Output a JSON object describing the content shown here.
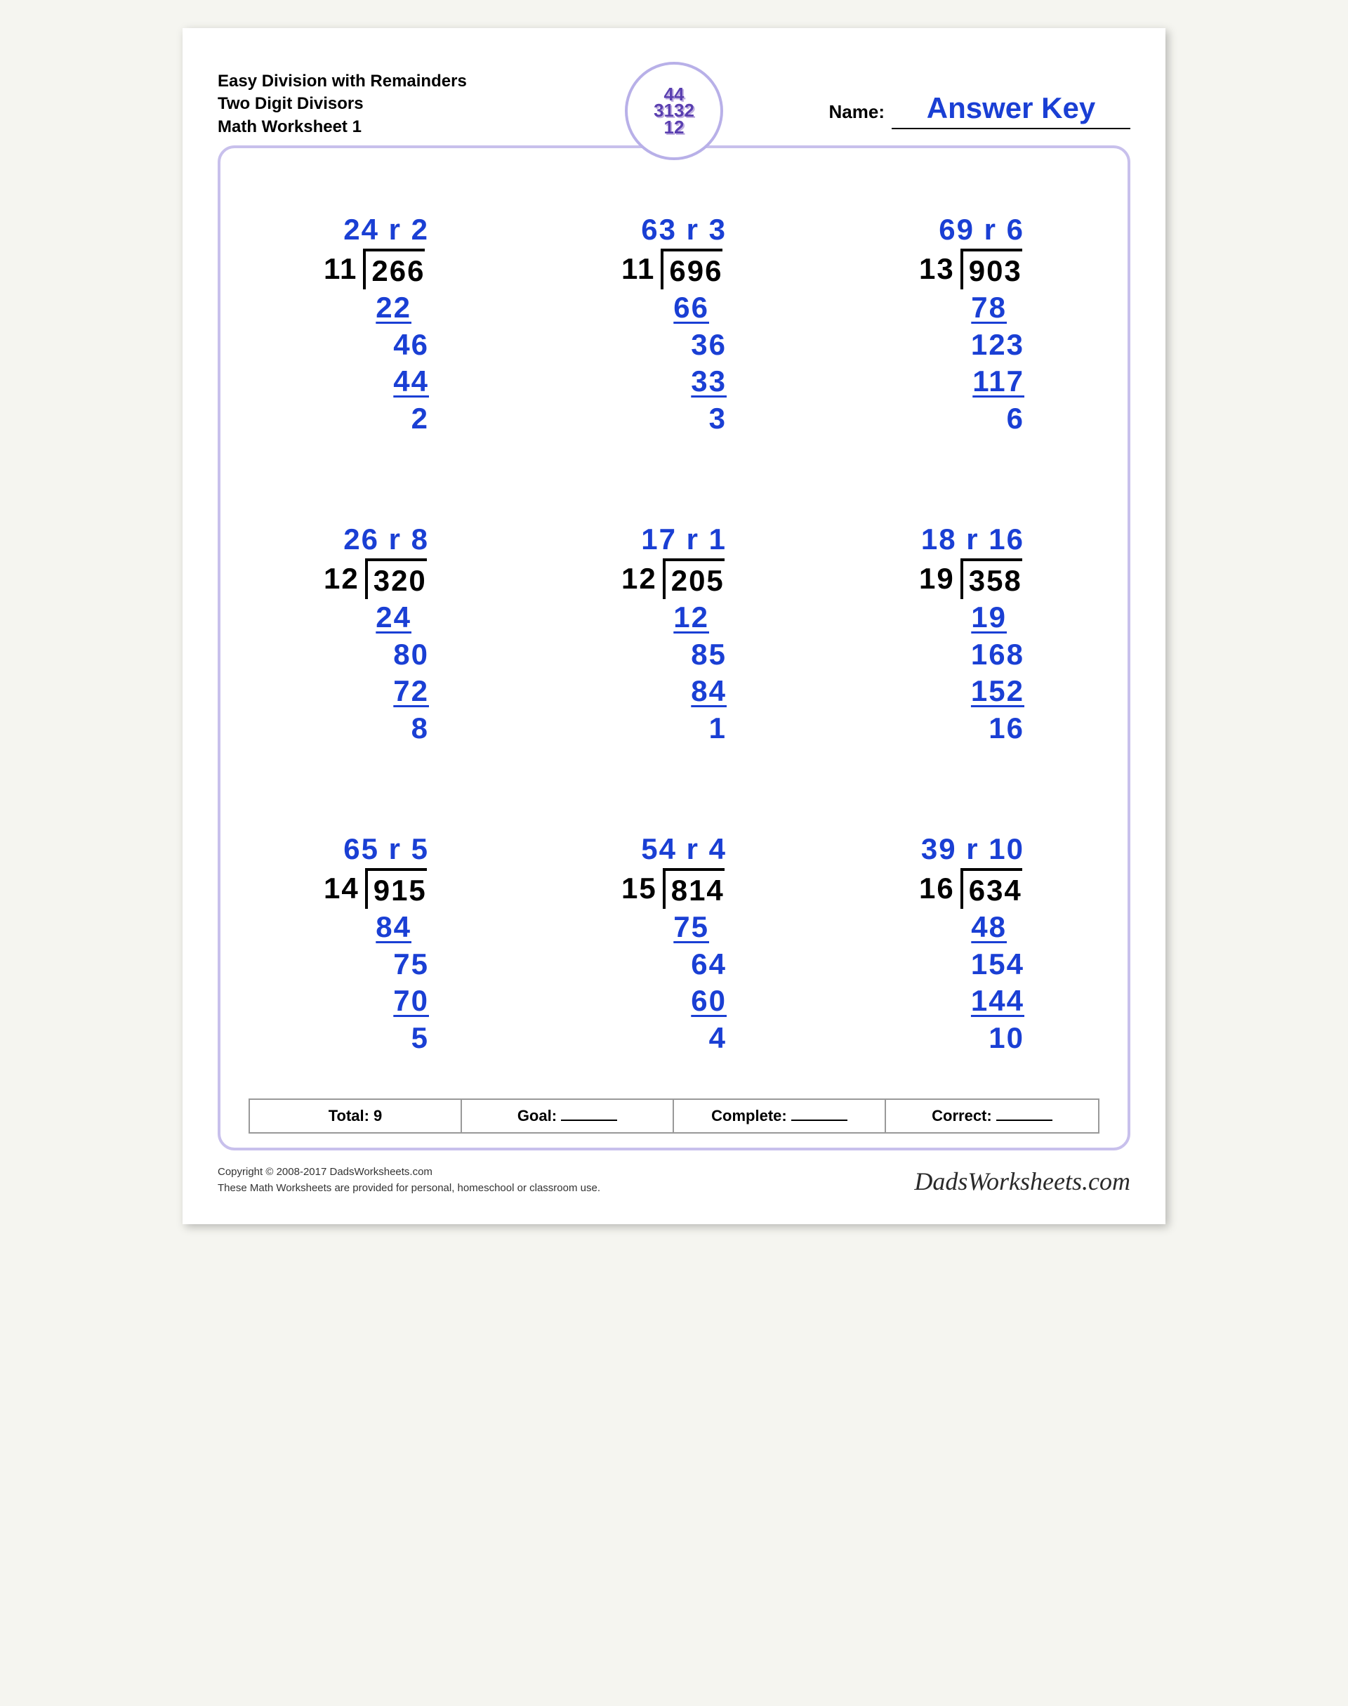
{
  "header": {
    "line1": "Easy Division with Remainders",
    "line2": "Two Digit Divisors",
    "line3": "Math Worksheet 1",
    "nameLabel": "Name:",
    "answerKey": "Answer Key",
    "logoText": "44\n3132\n12\n12"
  },
  "colors": {
    "answer": "#1a3fd4",
    "text": "#000000",
    "frame": "#c8c0ec"
  },
  "problems": [
    {
      "divisor": "11",
      "dividend": "266",
      "quotient": "24",
      "remainder": "2",
      "work": [
        {
          "t": "22",
          "u": true,
          "pad": 1
        },
        {
          "t": "46",
          "pad": 0
        },
        {
          "t": "44",
          "u": true,
          "pad": 0
        },
        {
          "t": "2",
          "pad": 0
        }
      ]
    },
    {
      "divisor": "11",
      "dividend": "696",
      "quotient": "63",
      "remainder": "3",
      "work": [
        {
          "t": "66",
          "u": true,
          "pad": 1
        },
        {
          "t": "36",
          "pad": 0
        },
        {
          "t": "33",
          "u": true,
          "pad": 0
        },
        {
          "t": "3",
          "pad": 0
        }
      ]
    },
    {
      "divisor": "13",
      "dividend": "903",
      "quotient": "69",
      "remainder": "6",
      "work": [
        {
          "t": "78",
          "u": true,
          "pad": 1
        },
        {
          "t": "123",
          "pad": 0
        },
        {
          "t": "117",
          "u": true,
          "pad": 0
        },
        {
          "t": "6",
          "pad": 0
        }
      ]
    },
    {
      "divisor": "12",
      "dividend": "320",
      "quotient": "26",
      "remainder": "8",
      "work": [
        {
          "t": "24",
          "u": true,
          "pad": 1
        },
        {
          "t": "80",
          "pad": 0
        },
        {
          "t": "72",
          "u": true,
          "pad": 0
        },
        {
          "t": "8",
          "pad": 0
        }
      ]
    },
    {
      "divisor": "12",
      "dividend": "205",
      "quotient": "17",
      "remainder": "1",
      "work": [
        {
          "t": "12",
          "u": true,
          "pad": 1
        },
        {
          "t": "85",
          "pad": 0
        },
        {
          "t": "84",
          "u": true,
          "pad": 0
        },
        {
          "t": "1",
          "pad": 0
        }
      ]
    },
    {
      "divisor": "19",
      "dividend": "358",
      "quotient": "18",
      "remainder": "16",
      "work": [
        {
          "t": "19",
          "u": true,
          "pad": 1
        },
        {
          "t": "168",
          "pad": 0
        },
        {
          "t": "152",
          "u": true,
          "pad": 0
        },
        {
          "t": "16",
          "pad": 0
        }
      ]
    },
    {
      "divisor": "14",
      "dividend": "915",
      "quotient": "65",
      "remainder": "5",
      "work": [
        {
          "t": "84",
          "u": true,
          "pad": 1
        },
        {
          "t": "75",
          "pad": 0
        },
        {
          "t": "70",
          "u": true,
          "pad": 0
        },
        {
          "t": "5",
          "pad": 0
        }
      ]
    },
    {
      "divisor": "15",
      "dividend": "814",
      "quotient": "54",
      "remainder": "4",
      "work": [
        {
          "t": "75",
          "u": true,
          "pad": 1
        },
        {
          "t": "64",
          "pad": 0
        },
        {
          "t": "60",
          "u": true,
          "pad": 0
        },
        {
          "t": "4",
          "pad": 0
        }
      ]
    },
    {
      "divisor": "16",
      "dividend": "634",
      "quotient": "39",
      "remainder": "10",
      "work": [
        {
          "t": "48",
          "u": true,
          "pad": 1
        },
        {
          "t": "154",
          "pad": 0
        },
        {
          "t": "144",
          "u": true,
          "pad": 0
        },
        {
          "t": "10",
          "pad": 0
        }
      ]
    }
  ],
  "summary": {
    "total": "Total: 9",
    "goal": "Goal:",
    "complete": "Complete:",
    "correct": "Correct:"
  },
  "footer": {
    "copyright": "Copyright © 2008-2017 DadsWorksheets.com",
    "note": "These Math Worksheets are provided for personal, homeschool or classroom use.",
    "brand": "DadsWorksheets.com"
  }
}
